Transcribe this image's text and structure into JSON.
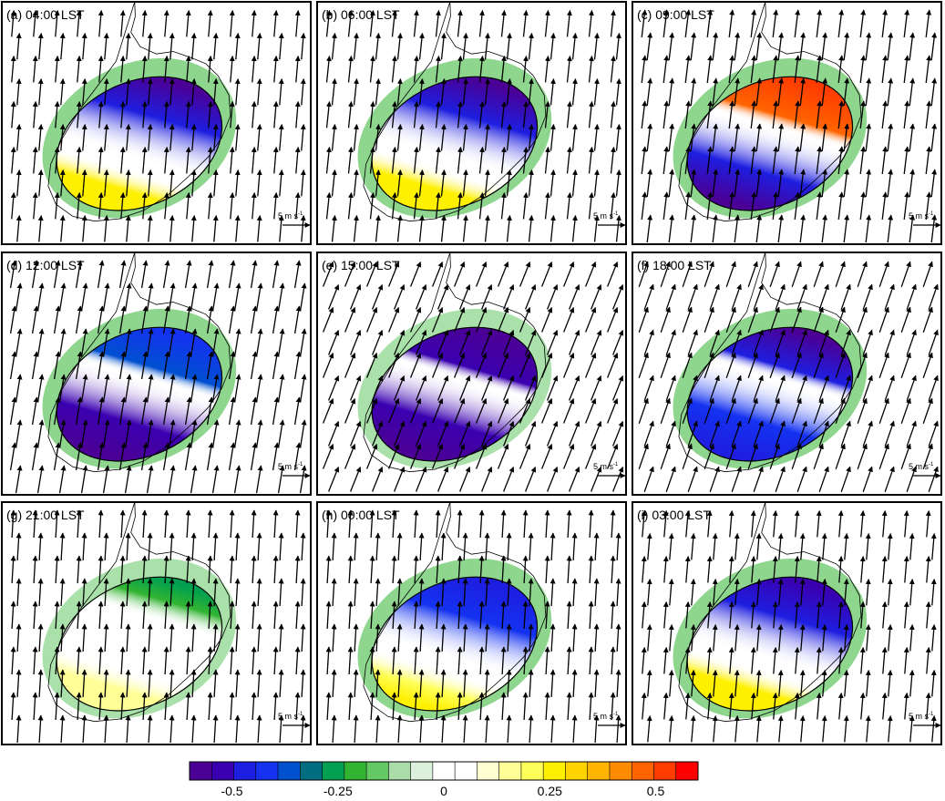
{
  "chart_data": {
    "type": "heatmap",
    "layout": "3x3 panel grid",
    "panels": [
      {
        "label": "(a) 04:00 LST",
        "wind": {
          "u": 0.4,
          "v": 4.8
        },
        "pattern": {
          "south": 0.28,
          "north": -0.55,
          "halo": -0.22
        }
      },
      {
        "label": "(b) 06:00 LST",
        "wind": {
          "u": 0.5,
          "v": 4.8
        },
        "pattern": {
          "south": 0.28,
          "north": -0.55,
          "halo": -0.22
        }
      },
      {
        "label": "(c) 09:00 LST",
        "wind": {
          "u": 0.6,
          "v": 5.0
        },
        "pattern": {
          "south": -0.55,
          "north": 0.5,
          "halo": -0.2
        }
      },
      {
        "label": "(d) 12:00 LST",
        "wind": {
          "u": 0.8,
          "v": 5.0
        },
        "pattern": {
          "south": -0.6,
          "north": -0.4,
          "halo": -0.2
        }
      },
      {
        "label": "(e) 15:00 LST",
        "wind": {
          "u": 1.8,
          "v": 4.5
        },
        "pattern": {
          "south": -0.6,
          "north": -0.6,
          "halo": -0.18
        }
      },
      {
        "label": "(f) 18:00 LST",
        "wind": {
          "u": 1.6,
          "v": 4.6
        },
        "pattern": {
          "south": -0.45,
          "north": -0.55,
          "halo": -0.2
        }
      },
      {
        "label": "(g) 21:00 LST",
        "wind": {
          "u": 0.3,
          "v": 5.0
        },
        "pattern": {
          "south": 0.18,
          "north": -0.25,
          "halo": -0.18
        }
      },
      {
        "label": "(h) 00:00 LST",
        "wind": {
          "u": 0.3,
          "v": 5.0
        },
        "pattern": {
          "south": 0.25,
          "north": -0.45,
          "halo": -0.2
        }
      },
      {
        "label": "(i) 03:00 LST",
        "wind": {
          "u": 0.4,
          "v": 4.8
        },
        "pattern": {
          "south": 0.28,
          "north": -0.5,
          "halo": -0.22
        }
      }
    ],
    "reference_vector": {
      "text": "5 m s",
      "superscript": "-1",
      "magnitude": 5
    },
    "colorbar": {
      "min": -0.6,
      "max": 0.6,
      "ticks": [
        {
          "value": -0.5,
          "label": "-0.5"
        },
        {
          "value": -0.25,
          "label": "-0.25"
        },
        {
          "value": 0,
          "label": "0"
        },
        {
          "value": 0.25,
          "label": "0.25"
        },
        {
          "value": 0.5,
          "label": "0.5"
        }
      ],
      "colors": [
        "#4b0096",
        "#3a00b0",
        "#1e1ee0",
        "#1432f0",
        "#0050d0",
        "#006e80",
        "#00a050",
        "#32b432",
        "#64c864",
        "#aadcaa",
        "#dcf0dc",
        "#ffffff",
        "#ffffff",
        "#ffffd2",
        "#ffff96",
        "#ffff5a",
        "#fff000",
        "#ffd200",
        "#ffb400",
        "#ff8c00",
        "#ff6400",
        "#ff3c00",
        "#ff0000"
      ]
    }
  }
}
